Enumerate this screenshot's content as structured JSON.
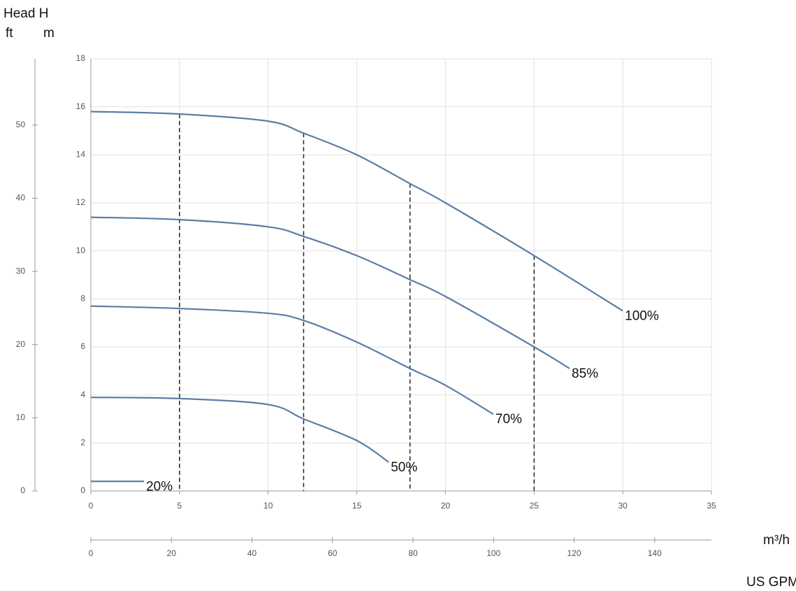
{
  "chart_data": {
    "type": "line",
    "ytitle": "Head H",
    "ylabel": "m",
    "y2label": "ft",
    "xlabel": "m³/h",
    "x2label": "US GPM",
    "xlim": [
      0,
      35
    ],
    "xticks": [
      0,
      5,
      10,
      15,
      20,
      25,
      30,
      35
    ],
    "ylim": [
      0,
      18
    ],
    "yticks": [
      0,
      2,
      4,
      6,
      8,
      10,
      12,
      14,
      16,
      18
    ],
    "y2lim": [
      0,
      59.06
    ],
    "y2ticks": [
      0,
      10,
      20,
      30,
      40,
      50
    ],
    "x2lim": [
      0,
      154.1
    ],
    "x2ticks": [
      0,
      20,
      40,
      60,
      80,
      100,
      120,
      140
    ],
    "grid": true,
    "series": [
      {
        "name": "100%",
        "color": "#5b7ea3",
        "x": [
          0,
          5,
          10,
          12,
          15,
          18,
          20,
          25,
          30
        ],
        "values": [
          15.8,
          15.7,
          15.4,
          14.9,
          14,
          12.8,
          12,
          9.8,
          7.5
        ]
      },
      {
        "name": "85%",
        "color": "#5b7ea3",
        "x": [
          0,
          5,
          10,
          12,
          15,
          18,
          20,
          25,
          27
        ],
        "values": [
          11.4,
          11.3,
          11,
          10.6,
          9.8,
          8.8,
          8.1,
          6,
          5.1
        ]
      },
      {
        "name": "70%",
        "color": "#5b7ea3",
        "x": [
          0,
          5,
          10,
          12,
          15,
          18,
          20,
          22.7
        ],
        "values": [
          7.7,
          7.6,
          7.4,
          7.1,
          6.2,
          5.1,
          4.4,
          3.2
        ]
      },
      {
        "name": "50%",
        "color": "#5b7ea3",
        "x": [
          0,
          5,
          10,
          12,
          15,
          16.8
        ],
        "values": [
          3.9,
          3.85,
          3.6,
          3,
          2.1,
          1.2
        ]
      },
      {
        "name": "20%",
        "color": "#5b7ea3",
        "x": [
          0,
          3
        ],
        "values": [
          0.4,
          0.4
        ]
      }
    ],
    "reference_lines": {
      "x": [
        5,
        12,
        18,
        25
      ],
      "top": [
        15.7,
        14.9,
        12.8,
        9.8
      ]
    }
  }
}
